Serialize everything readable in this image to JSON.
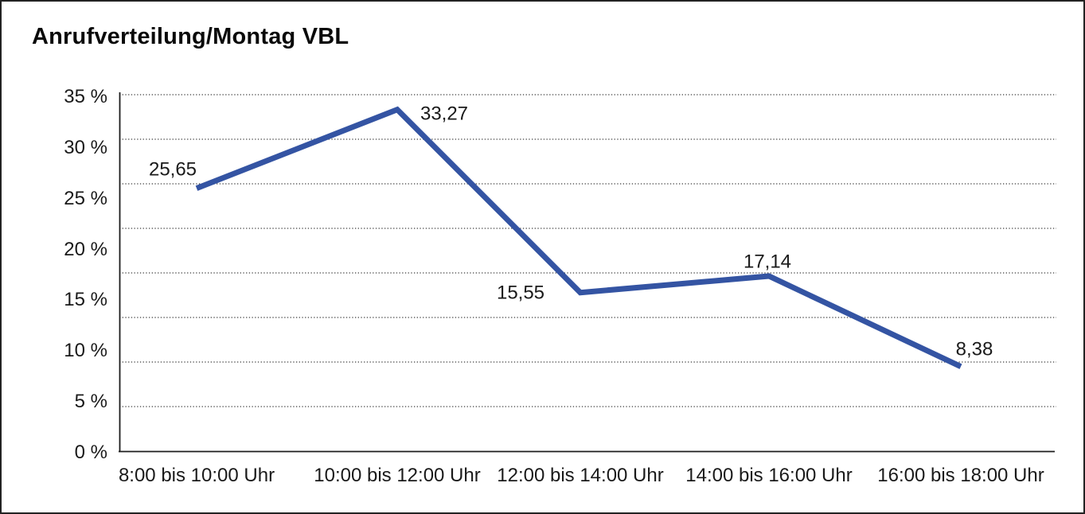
{
  "title": "Anrufverteilung/Montag VBL",
  "chart_data": {
    "type": "line",
    "title": "Anrufverteilung/Montag VBL",
    "categories": [
      "8:00 bis 10:00 Uhr",
      "10:00 bis 12:00 Uhr",
      "12:00 bis 14:00 Uhr",
      "14:00 bis 16:00 Uhr",
      "16:00 bis 18:00 Uhr"
    ],
    "values": [
      25.65,
      33.27,
      15.55,
      17.14,
      8.38
    ],
    "value_labels": [
      "25,65",
      "33,27",
      "15,55",
      "17,14",
      "8,38"
    ],
    "xlabel": "",
    "ylabel": "",
    "ylim": [
      0,
      35
    ],
    "ytick_step": 5,
    "ytick_labels": [
      "0 %",
      "5 %",
      "10 %",
      "15 %",
      "20 %",
      "25 %",
      "30 %",
      "35 %"
    ],
    "grid": "horizontal-dotted",
    "legend": "none",
    "line_color": "#3454a3"
  }
}
